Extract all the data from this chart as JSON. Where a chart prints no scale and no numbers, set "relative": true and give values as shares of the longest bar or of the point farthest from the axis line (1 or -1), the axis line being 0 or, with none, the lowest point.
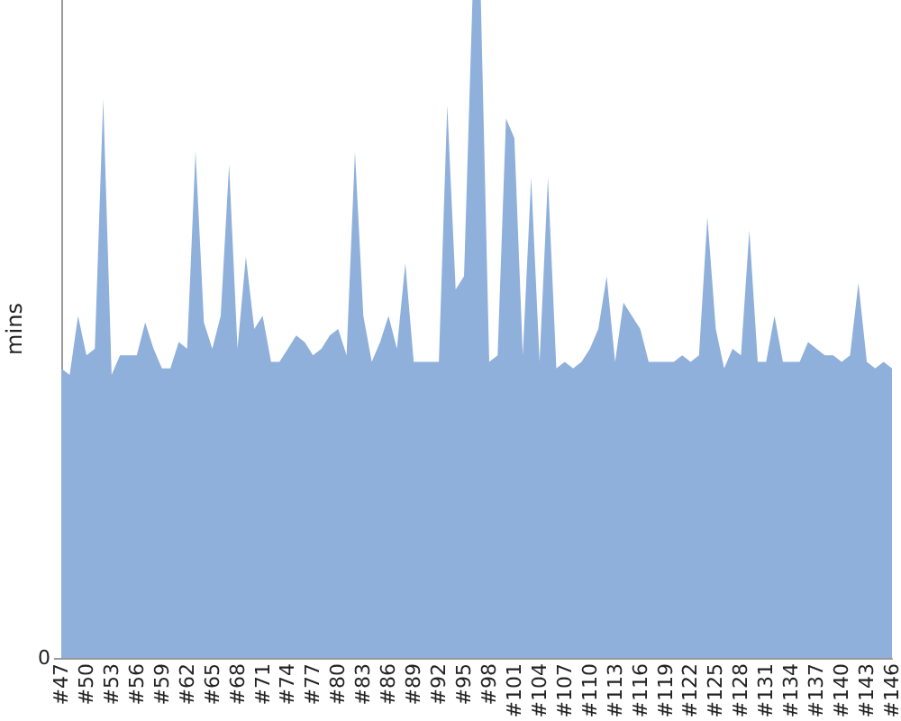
{
  "chart_data": {
    "type": "area",
    "ylabel": "mins",
    "relative": true,
    "color": "#8fb0da",
    "annotations": [
      "0"
    ],
    "categories": [
      "#47",
      null,
      null,
      "#50",
      null,
      null,
      "#53",
      null,
      null,
      "#56",
      null,
      null,
      "#59",
      null,
      null,
      "#62",
      null,
      null,
      "#65",
      null,
      null,
      "#68",
      null,
      null,
      "#71",
      null,
      null,
      "#74",
      null,
      null,
      "#77",
      null,
      null,
      "#80",
      null,
      null,
      "#83",
      null,
      null,
      "#86",
      null,
      null,
      "#89",
      null,
      null,
      "#92",
      null,
      null,
      "#95",
      null,
      null,
      "#98",
      null,
      null,
      "#101",
      null,
      null,
      "#104",
      null,
      null,
      "#107",
      null,
      null,
      "#110",
      null,
      null,
      "#113",
      null,
      null,
      "#116",
      null,
      null,
      "#119",
      null,
      null,
      "#122",
      null,
      null,
      "#125",
      null,
      null,
      "#128",
      null,
      null,
      "#131",
      null,
      null,
      "#134",
      null,
      null,
      "#137",
      null,
      null,
      "#140",
      null,
      null,
      "#143",
      null,
      null,
      "#146"
    ],
    "values": [
      0.44,
      0.43,
      0.52,
      0.46,
      0.47,
      0.85,
      0.43,
      0.46,
      0.46,
      0.46,
      0.51,
      0.47,
      0.44,
      0.44,
      0.48,
      0.47,
      0.77,
      0.51,
      0.47,
      0.52,
      0.75,
      0.47,
      0.61,
      0.5,
      0.52,
      0.45,
      0.45,
      0.47,
      0.49,
      0.48,
      0.46,
      0.47,
      0.49,
      0.5,
      0.46,
      0.77,
      0.52,
      0.45,
      0.48,
      0.52,
      0.47,
      0.6,
      0.45,
      0.45,
      0.45,
      0.45,
      0.84,
      0.56,
      0.58,
      1,
      1,
      0.45,
      0.46,
      0.82,
      0.79,
      0.46,
      0.73,
      0.45,
      0.73,
      0.44,
      0.45,
      0.44,
      0.45,
      0.47,
      0.5,
      0.58,
      0.45,
      0.54,
      0.52,
      0.5,
      0.45,
      0.45,
      0.45,
      0.45,
      0.46,
      0.45,
      0.46,
      0.67,
      0.5,
      0.44,
      0.47,
      0.46,
      0.65,
      0.45,
      0.45,
      0.52,
      0.45,
      0.45,
      0.45,
      0.48,
      0.47,
      0.46,
      0.46,
      0.45,
      0.46,
      0.57,
      0.45,
      0.44,
      0.45,
      0.44
    ]
  }
}
